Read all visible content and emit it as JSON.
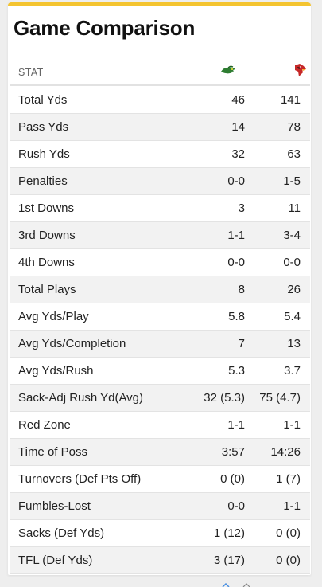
{
  "title": "Game Comparison",
  "header": {
    "stat_label": "STAT",
    "team_a_logo": "green-gator-logo-icon",
    "team_b_logo": "red-cardinal-logo-icon"
  },
  "colors": {
    "accent": "#f4c430",
    "team_a": "#2e7d32",
    "team_b": "#c62828"
  },
  "rows": [
    {
      "stat": "Total Yds",
      "a": "46",
      "b": "141"
    },
    {
      "stat": "Pass Yds",
      "a": "14",
      "b": "78"
    },
    {
      "stat": "Rush Yds",
      "a": "32",
      "b": "63"
    },
    {
      "stat": "Penalties",
      "a": "0-0",
      "b": "1-5"
    },
    {
      "stat": "1st Downs",
      "a": "3",
      "b": "11"
    },
    {
      "stat": "3rd Downs",
      "a": "1-1",
      "b": "3-4"
    },
    {
      "stat": "4th Downs",
      "a": "0-0",
      "b": "0-0"
    },
    {
      "stat": "Total Plays",
      "a": "8",
      "b": "26"
    },
    {
      "stat": "Avg Yds/Play",
      "a": "5.8",
      "b": "5.4"
    },
    {
      "stat": "Avg Yds/Completion",
      "a": "7",
      "b": "13"
    },
    {
      "stat": "Avg Yds/Rush",
      "a": "5.3",
      "b": "3.7"
    },
    {
      "stat": "Sack-Adj Rush Yd(Avg)",
      "a": "32 (5.3)",
      "b": "75 (4.7)"
    },
    {
      "stat": "Red Zone",
      "a": "1-1",
      "b": "1-1"
    },
    {
      "stat": "Time of Poss",
      "a": "3:57",
      "b": "14:26"
    },
    {
      "stat": "Turnovers (Def Pts Off)",
      "a": "0 (0)",
      "b": "1 (7)"
    },
    {
      "stat": "Fumbles-Lost",
      "a": "0-0",
      "b": "1-1"
    },
    {
      "stat": "Sacks (Def Yds)",
      "a": "1 (12)",
      "b": "0 (0)"
    },
    {
      "stat": "TFL (Def Yds)",
      "a": "3 (17)",
      "b": "0 (0)"
    }
  ]
}
